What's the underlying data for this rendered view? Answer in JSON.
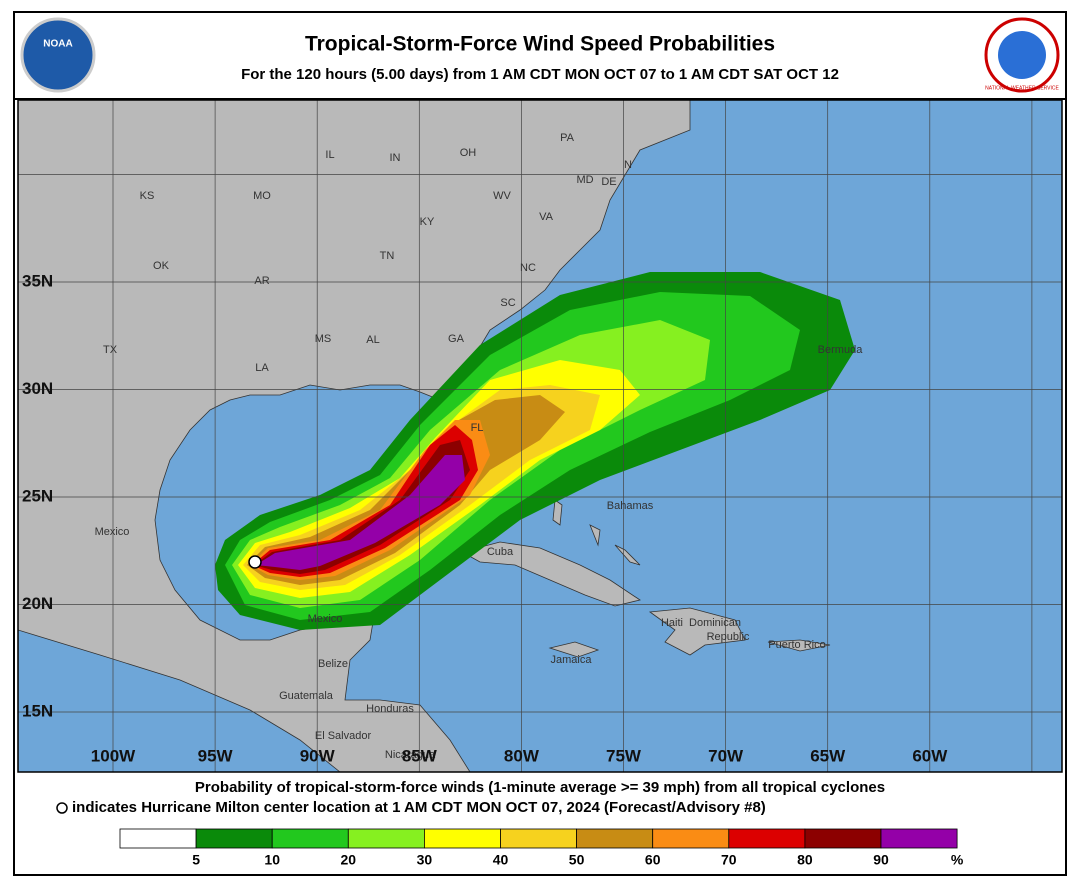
{
  "header": {
    "title": "Tropical-Storm-Force Wind Speed Probabilities",
    "subtitle": "For the 120 hours (5.00 days) from 1 AM CDT MON OCT 07 to 1 AM CDT SAT OCT 12",
    "logo_left": "NOAA",
    "logo_right": "NATIONAL WEATHER SERVICE"
  },
  "map": {
    "lat_labels": [
      "35N",
      "30N",
      "25N",
      "20N",
      "15N"
    ],
    "lon_labels": [
      "100W",
      "95W",
      "90W",
      "85W",
      "80W",
      "75W",
      "70W",
      "65W",
      "60W"
    ],
    "places": [
      "IL",
      "IN",
      "OH",
      "PA",
      "N",
      "MD",
      "DE",
      "KS",
      "MO",
      "KY",
      "WV",
      "VA",
      "OK",
      "AR",
      "TN",
      "NC",
      "SC",
      "MS",
      "AL",
      "GA",
      "TX",
      "LA",
      "FL",
      "Bermuda",
      "Mexico",
      "Bahamas",
      "Cuba",
      "Mexico",
      "Belize",
      "Guatemala",
      "Honduras",
      "El Salvador",
      "Nicaragua",
      "Jamaica",
      "Haiti",
      "Dominican",
      "Republic",
      "Puerto Rico"
    ]
  },
  "footer": {
    "line1": "Probability of tropical-storm-force winds (1-minute average >= 39 mph) from all tropical cyclones",
    "line2": "indicates Hurricane Milton center location at 1 AM CDT MON OCT 07, 2024 (Forecast/Advisory #8)"
  },
  "legend": {
    "ticks": [
      5,
      10,
      20,
      30,
      40,
      50,
      60,
      70,
      80,
      90
    ],
    "unit": "%",
    "colors": [
      "#ffffff",
      "#0a8a0a",
      "#22c81e",
      "#86f020",
      "#ffff00",
      "#f6d21e",
      "#c88c14",
      "#fa8c14",
      "#dc0000",
      "#8c0000",
      "#9400a8"
    ]
  }
}
